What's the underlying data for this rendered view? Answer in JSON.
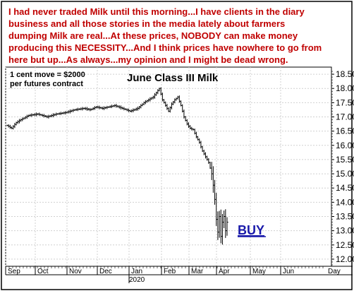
{
  "annotation": {
    "lines": [
      "I had never traded Milk until this morning...I have clients in the diary",
      "business and all those stories in the media lately about farmers",
      "dumping Milk are real...At these prices, NOBODY can make money",
      "producing this NECESSITY...And I think prices have nowhere to go from",
      "here but up...As always...my opinion and I might be dead wrong."
    ],
    "color": "#c00000"
  },
  "info_box": {
    "line1": "1 cent move = $2000",
    "line2": "per futures contract"
  },
  "buy_label": "BUY",
  "buy_color": "#1a1aaa",
  "chart_data": {
    "type": "ohlc",
    "title": "June Class III Milk",
    "xlabel": "",
    "ylabel": "",
    "ylim": [
      11.75,
      18.75
    ],
    "yticks": [
      12.0,
      12.5,
      13.0,
      13.5,
      14.0,
      14.5,
      15.0,
      15.5,
      16.0,
      16.5,
      17.0,
      17.5,
      18.0,
      18.5
    ],
    "xticks": [
      "Sep",
      "Oct",
      "Nov",
      "Dec",
      "Jan",
      "Feb",
      "Mar",
      "Apr",
      "May",
      "Jun",
      "Day"
    ],
    "year_label": "2020",
    "grid": true,
    "series": [
      {
        "keypoints": [
          [
            0,
            16.7
          ],
          [
            3,
            16.6
          ],
          [
            6,
            16.8
          ],
          [
            9,
            16.9
          ],
          [
            14,
            17.05
          ],
          [
            20,
            17.1
          ],
          [
            26,
            17.0
          ],
          [
            32,
            17.1
          ],
          [
            38,
            17.15
          ],
          [
            44,
            17.25
          ],
          [
            50,
            17.3
          ],
          [
            54,
            17.25
          ],
          [
            58,
            17.35
          ],
          [
            62,
            17.3
          ],
          [
            66,
            17.35
          ],
          [
            70,
            17.4
          ],
          [
            75,
            17.3
          ],
          [
            80,
            17.2
          ],
          [
            85,
            17.3
          ],
          [
            89,
            17.5
          ],
          [
            92,
            17.6
          ],
          [
            95,
            17.7
          ],
          [
            97,
            17.85
          ],
          [
            99,
            18.0
          ],
          [
            101,
            17.6
          ],
          [
            103,
            17.4
          ],
          [
            105,
            17.2
          ],
          [
            107,
            17.45
          ],
          [
            109,
            17.6
          ],
          [
            111,
            17.7
          ],
          [
            113,
            17.4
          ],
          [
            115,
            17.0
          ],
          [
            117,
            16.75
          ],
          [
            119,
            16.6
          ],
          [
            121,
            16.55
          ],
          [
            123,
            16.3
          ],
          [
            125,
            16.1
          ],
          [
            127,
            15.8
          ],
          [
            129,
            15.6
          ],
          [
            131,
            15.4
          ],
          [
            133,
            15.0
          ],
          [
            134,
            14.6
          ],
          [
            135,
            14.1
          ],
          [
            136,
            13.4
          ],
          [
            137,
            12.95
          ],
          [
            138,
            13.5
          ],
          [
            139,
            12.8
          ],
          [
            140,
            13.3
          ],
          [
            141,
            13.5
          ],
          [
            142,
            13.0
          ],
          [
            143,
            13.3
          ]
        ]
      }
    ]
  }
}
